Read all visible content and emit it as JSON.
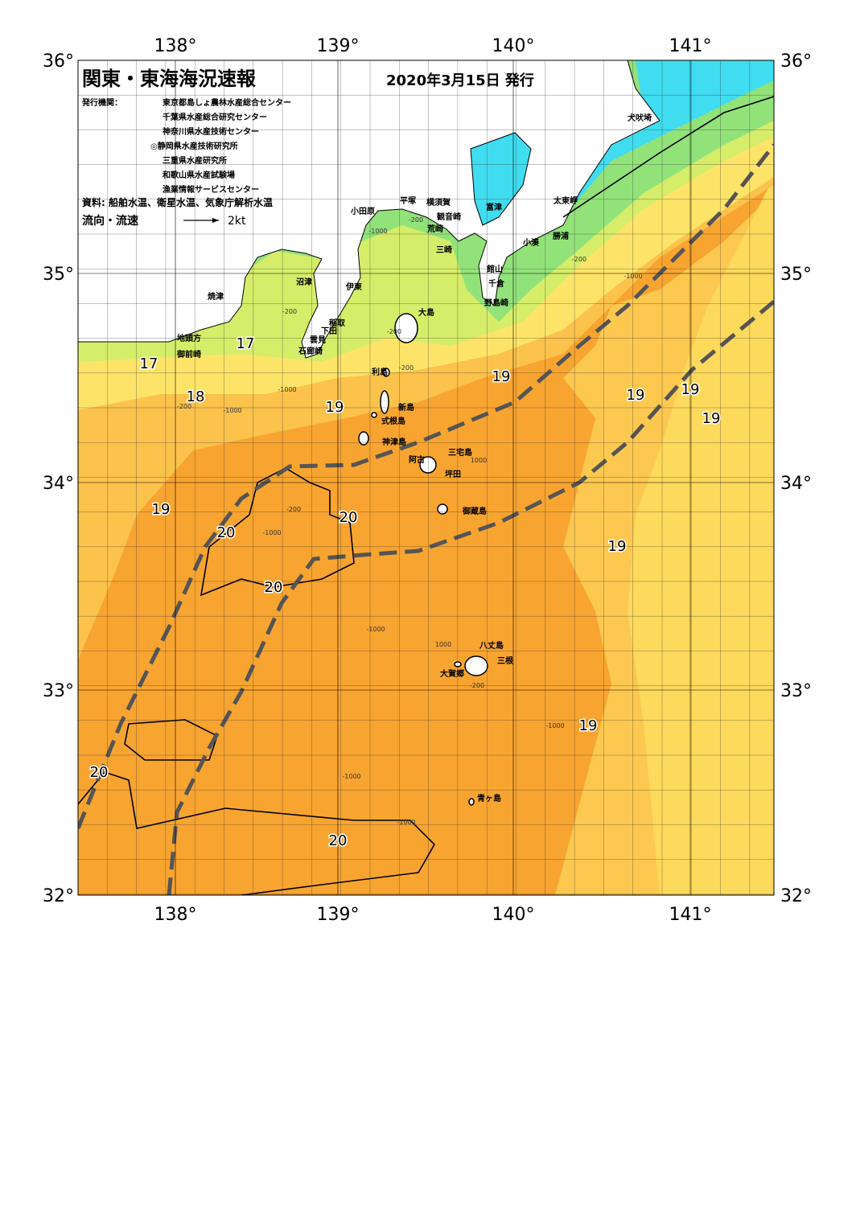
{
  "header": {
    "title": "関東・東海海況速報",
    "date": "2020年3月15日 発行"
  },
  "issuers": {
    "label": "発行機関：",
    "agencies": [
      "東京都島しょ農林水産総合センター",
      "千葉県水産総合研究センター",
      "神奈川県水産技術センター",
      "◎静岡県水産技術研究所",
      "三重県水産研究所",
      "和歌山県水産試験場",
      "漁業情報サービスセンター"
    ]
  },
  "sources": "資料: 船舶水温、衛星水温、気象庁解析水温",
  "legend": {
    "label": "流向・流速",
    "scale": "2kt"
  },
  "lon_labels": [
    "138°",
    "139°",
    "140°",
    "141°"
  ],
  "lat_labels": [
    "36°",
    "35°",
    "34°",
    "33°",
    "32°"
  ],
  "places": [
    "犬吠埼",
    "太東岬",
    "勝浦",
    "小湊",
    "館山",
    "千倉",
    "野島崎",
    "富津",
    "横須賀",
    "観音崎",
    "荒崎",
    "三崎",
    "平塚",
    "小田原",
    "沼津",
    "伊東",
    "焼津",
    "稲取",
    "下田",
    "雲見",
    "石廊崎",
    "地頭方",
    "御前崎",
    "大島",
    "利島",
    "新島",
    "式根島",
    "神津島",
    "三宅島",
    "阿古",
    "坪田",
    "御蔵島",
    "八丈島",
    "三根",
    "大賀郷",
    "青ヶ島"
  ],
  "isotherm_labels": [
    "17",
    "17",
    "18",
    "19",
    "19",
    "19",
    "19",
    "19",
    "19",
    "20",
    "20",
    "20",
    "19",
    "19",
    "20",
    "20"
  ],
  "depth_labels": [
    "-200",
    "-1000",
    "-200",
    "-200",
    "-1000",
    "-200",
    "-200",
    "-1000",
    "-1000",
    "-200",
    "-200",
    "-1000",
    "1000",
    "-1000",
    "1000",
    "-200",
    "-1000",
    "-1000",
    "-1000"
  ]
}
